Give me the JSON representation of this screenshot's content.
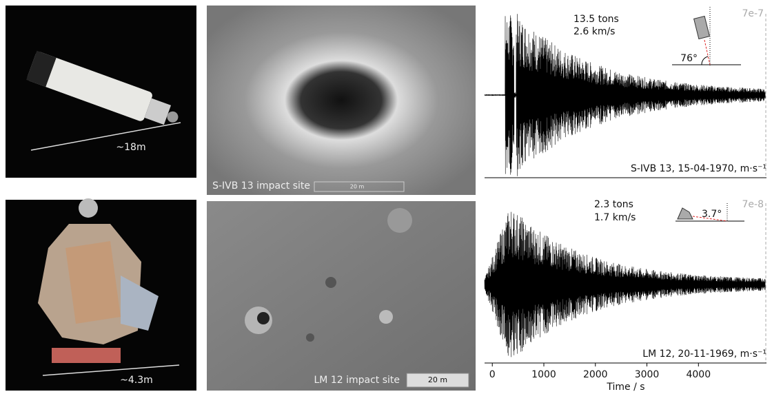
{
  "photos": [
    {
      "label": "~18m"
    },
    {
      "label": "~4.3m"
    }
  ],
  "sites": [
    {
      "caption": "S-IVB 13 impact site",
      "scale": "20 m"
    },
    {
      "caption": "LM 12 impact site",
      "scale": "20 m"
    }
  ],
  "seismograms": [
    {
      "mass": "13.5 tons",
      "speed": "2.6 km/s",
      "angle": "76°",
      "amplitude": "7e-7",
      "caption": "S-IVB 13, 15-04-1970, m·s⁻¹"
    },
    {
      "mass": "2.3 tons",
      "speed": "1.7 km/s",
      "angle": "3.7°",
      "amplitude": "7e-8",
      "caption": "LM 12, 20-11-1969, m·s⁻¹"
    }
  ],
  "axis": {
    "xlabel": "Time / s",
    "xlim": [
      -150,
      5320
    ],
    "xticks": [
      0,
      1000,
      2000,
      3000,
      4000
    ]
  }
}
